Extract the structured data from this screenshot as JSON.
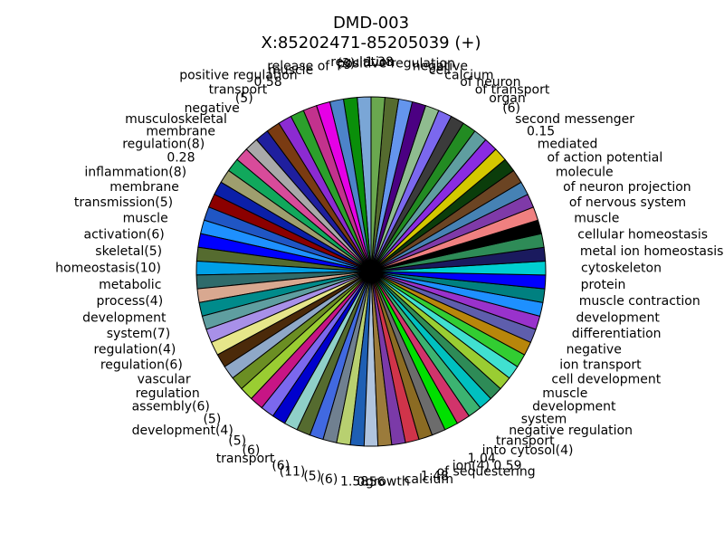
{
  "chart_data": {
    "type": "pie",
    "title_lines": [
      "DMD-003",
      "X:85202471-85205039 (+)"
    ],
    "legend": "none",
    "grid": false,
    "slices": [
      {
        "label": "regulation",
        "value": 1.2,
        "color": "#7aa6d6"
      },
      {
        "label": "(3)",
        "value": 1.2,
        "color": "#0a8f0a"
      },
      {
        "label": "release of",
        "value": 1.2,
        "color": "#4d83c9"
      },
      {
        "label": "muscle",
        "value": 1.2,
        "color": "#e600e6"
      },
      {
        "label": "positive regulation",
        "value": 1.2,
        "color": "#c2328d"
      },
      {
        "label": "0.58",
        "value": 1.2,
        "color": "#2ca02c"
      },
      {
        "label": "transport",
        "value": 1.2,
        "color": "#8c2bd1"
      },
      {
        "label": "(5)",
        "value": 1.2,
        "color": "#7a3b12"
      },
      {
        "label": "negative",
        "value": 1.2,
        "color": "#1f1f9e"
      },
      {
        "label": "musculoskeletal",
        "value": 1.2,
        "color": "#a9a9a9"
      },
      {
        "label": "membrane",
        "value": 1.2,
        "color": "#d84b9a"
      },
      {
        "label": "regulation(8)",
        "value": 1.2,
        "color": "#11a85c"
      },
      {
        "label": "0.28",
        "value": 1.2,
        "color": "#9e9e6e"
      },
      {
        "label": "inflammation(8)",
        "value": 1.2,
        "color": "#0b1fa8"
      },
      {
        "label": "membrane",
        "value": 1.2,
        "color": "#8b0000"
      },
      {
        "label": "transmission(5)",
        "value": 1.2,
        "color": "#2056c4"
      },
      {
        "label": "muscle",
        "value": 1.2,
        "color": "#1e90ff"
      },
      {
        "label": "activation(6)",
        "value": 1.2,
        "color": "#0000ff"
      },
      {
        "label": "skeletal(5)",
        "value": 1.2,
        "color": "#556b2f"
      },
      {
        "label": "homeostasis(10)",
        "value": 1.2,
        "color": "#00a0e6"
      },
      {
        "label": "metabolic",
        "value": 1.2,
        "color": "#2f6b6b"
      },
      {
        "label": "process(4)",
        "value": 1.2,
        "color": "#d8a890"
      },
      {
        "label": "development",
        "value": 1.2,
        "color": "#008b8b"
      },
      {
        "label": "system(7)",
        "value": 1.2,
        "color": "#5f9ea0"
      },
      {
        "label": "regulation(4)",
        "value": 1.2,
        "color": "#a890e8"
      },
      {
        "label": "regulation(6)",
        "value": 1.2,
        "color": "#e6e68a"
      },
      {
        "label": "vascular",
        "value": 1.2,
        "color": "#4b2a0a"
      },
      {
        "label": "regulation",
        "value": 1.2,
        "color": "#8fa8c8"
      },
      {
        "label": "assembly(6)",
        "value": 1.2,
        "color": "#6b8e23"
      },
      {
        "label": "(5)",
        "value": 1.2,
        "color": "#9acd32"
      },
      {
        "label": "development(4)",
        "value": 1.2,
        "color": "#c71585"
      },
      {
        "label": "(5)",
        "value": 1.2,
        "color": "#7b68ee"
      },
      {
        "label": "(6)",
        "value": 1.2,
        "color": "#0000cd"
      },
      {
        "label": "transport",
        "value": 1.2,
        "color": "#8fd0c8"
      },
      {
        "label": "(6)",
        "value": 1.2,
        "color": "#556b2f"
      },
      {
        "label": "(11)",
        "value": 1.2,
        "color": "#4169e1"
      },
      {
        "label": "(5)",
        "value": 1.2,
        "color": "#708090"
      },
      {
        "label": "(6)",
        "value": 1.2,
        "color": "#b8d070"
      },
      {
        "label": "1.58",
        "value": 1.2,
        "color": "#1e5fb4"
      },
      {
        "label": "0.56",
        "value": 1.2,
        "color": "#b0c4de"
      },
      {
        "label": "growth",
        "value": 1.2,
        "color": "#9b7b3b"
      },
      {
        "label": "calcium",
        "value": 1.2,
        "color": "#7b3aa8"
      },
      {
        "label": "1.48",
        "value": 1.2,
        "color": "#d0344a"
      },
      {
        "label": "of sequestering",
        "value": 1.2,
        "color": "#8b6b23"
      },
      {
        "label": "ion(4) 0.59",
        "value": 1.2,
        "color": "#6c6c6c"
      },
      {
        "label": "1.04",
        "value": 1.2,
        "color": "#00e000"
      },
      {
        "label": "into cytosol(4)",
        "value": 1.2,
        "color": "#d1346b"
      },
      {
        "label": "transport",
        "value": 1.2,
        "color": "#3cb371"
      },
      {
        "label": "negative regulation",
        "value": 1.2,
        "color": "#00c0c0"
      },
      {
        "label": "system",
        "value": 1.2,
        "color": "#2e8b57"
      },
      {
        "label": "development",
        "value": 1.2,
        "color": "#9acd32"
      },
      {
        "label": "muscle",
        "value": 1.2,
        "color": "#40e0d0"
      },
      {
        "label": "cell development",
        "value": 1.2,
        "color": "#32cd32"
      },
      {
        "label": "ion transport",
        "value": 1.2,
        "color": "#b8860b"
      },
      {
        "label": "negative",
        "value": 1.2,
        "color": "#5e5eac"
      },
      {
        "label": "differentiation",
        "value": 1.2,
        "color": "#9932cc"
      },
      {
        "label": "development",
        "value": 1.2,
        "color": "#1e90ff"
      },
      {
        "label": "muscle contraction",
        "value": 1.2,
        "color": "#008080"
      },
      {
        "label": "protein",
        "value": 1.2,
        "color": "#0000ff"
      },
      {
        "label": "cytoskeleton",
        "value": 1.2,
        "color": "#00ced1"
      },
      {
        "label": "metal ion homeostasis",
        "value": 1.2,
        "color": "#1a1a5e"
      },
      {
        "label": "cellular homeostasis",
        "value": 1.2,
        "color": "#2e8b57"
      },
      {
        "label": "muscle",
        "value": 1.2,
        "color": "#000000"
      },
      {
        "label": "of nervous system",
        "value": 1.2,
        "color": "#f08080"
      },
      {
        "label": "of neuron projection",
        "value": 1.2,
        "color": "#7f3aa8"
      },
      {
        "label": "molecule",
        "value": 1.2,
        "color": "#4682b4"
      },
      {
        "label": "of action potential",
        "value": 1.2,
        "color": "#6b4423"
      },
      {
        "label": "mediated",
        "value": 1.2,
        "color": "#0b3d0b"
      },
      {
        "label": "0.15",
        "value": 1.2,
        "color": "#d4c800"
      },
      {
        "label": "second messenger",
        "value": 1.2,
        "color": "#8a2be2"
      },
      {
        "label": "(6)",
        "value": 1.2,
        "color": "#5f9ea0"
      },
      {
        "label": "organ",
        "value": 1.2,
        "color": "#228b22"
      },
      {
        "label": "of transport",
        "value": 1.2,
        "color": "#3b3b3b"
      },
      {
        "label": "of neuron",
        "value": 1.2,
        "color": "#7b68ee"
      },
      {
        "label": "calcium",
        "value": 1.2,
        "color": "#8fbc8f"
      },
      {
        "label": "cell",
        "value": 1.2,
        "color": "#4b0082"
      },
      {
        "label": "negative",
        "value": 1.2,
        "color": "#6495ed"
      },
      {
        "label": "positive regulation",
        "value": 1.2,
        "color": "#556b2f"
      },
      {
        "label": "1.38",
        "value": 1.2,
        "color": "#6aa84f"
      }
    ]
  }
}
